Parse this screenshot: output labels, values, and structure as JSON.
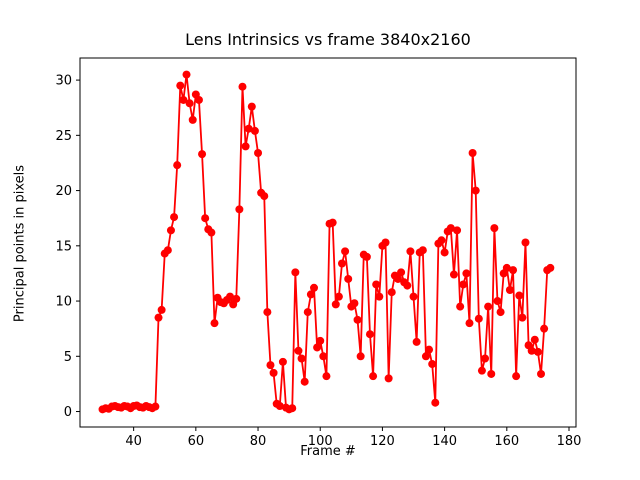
{
  "chart_data": {
    "type": "line",
    "title": "Lens Intrinsics vs frame 3840x2160",
    "xlabel": "Frame #",
    "ylabel": "Principal points in pixels",
    "line_color": "#ff0000",
    "marker": "circle",
    "legend": "none",
    "grid": false,
    "xlim": [
      22.75,
      182.25
    ],
    "ylim": [
      -1.4,
      32.0
    ],
    "xticks": [
      40,
      60,
      80,
      100,
      120,
      140,
      160,
      180
    ],
    "yticks": [
      0,
      5,
      10,
      15,
      20,
      25,
      30
    ],
    "x": [
      30,
      31,
      32,
      33,
      34,
      35,
      36,
      37,
      38,
      39,
      40,
      41,
      42,
      43,
      44,
      45,
      46,
      47,
      48,
      49,
      50,
      51,
      52,
      53,
      54,
      55,
      56,
      57,
      58,
      59,
      60,
      61,
      62,
      63,
      64,
      65,
      66,
      67,
      68,
      69,
      70,
      71,
      72,
      73,
      74,
      75,
      76,
      77,
      78,
      79,
      80,
      81,
      82,
      83,
      84,
      85,
      86,
      87,
      88,
      89,
      90,
      91,
      92,
      93,
      94,
      95,
      96,
      97,
      98,
      99,
      100,
      101,
      102,
      103,
      104,
      105,
      106,
      107,
      108,
      109,
      110,
      111,
      112,
      113,
      114,
      115,
      116,
      117,
      118,
      119,
      120,
      121,
      122,
      123,
      124,
      125,
      126,
      127,
      128,
      129,
      130,
      131,
      132,
      133,
      134,
      135,
      136,
      137,
      138,
      139,
      140,
      141,
      142,
      143,
      144,
      145,
      146,
      147,
      148,
      149,
      150,
      151,
      152,
      153,
      154,
      155,
      156,
      157,
      158,
      159,
      160,
      161,
      162,
      163,
      164,
      165,
      166,
      167,
      168,
      169,
      170,
      171,
      172,
      173,
      174
    ],
    "y": [
      0.2,
      0.3,
      0.25,
      0.45,
      0.5,
      0.4,
      0.35,
      0.5,
      0.45,
      0.3,
      0.5,
      0.55,
      0.4,
      0.35,
      0.5,
      0.4,
      0.3,
      0.45,
      8.5,
      9.2,
      14.3,
      14.6,
      16.4,
      17.6,
      22.3,
      29.5,
      28.2,
      30.5,
      27.9,
      26.4,
      28.7,
      28.2,
      23.3,
      17.5,
      16.5,
      16.2,
      8.0,
      10.3,
      9.9,
      9.8,
      10.1,
      10.4,
      9.7,
      10.2,
      18.3,
      29.4,
      24.0,
      25.6,
      27.6,
      25.4,
      23.4,
      19.8,
      19.5,
      9.0,
      4.2,
      3.5,
      0.7,
      0.5,
      4.5,
      0.35,
      0.2,
      0.3,
      12.6,
      5.5,
      4.8,
      2.7,
      9.0,
      10.6,
      11.2,
      5.8,
      6.4,
      5.0,
      3.2,
      17.0,
      17.1,
      9.7,
      10.4,
      13.4,
      14.5,
      12.0,
      9.5,
      9.8,
      8.3,
      5.0,
      14.2,
      14.0,
      7.0,
      3.2,
      11.5,
      10.4,
      15.0,
      15.3,
      3.0,
      10.8,
      12.3,
      12.0,
      12.6,
      11.7,
      11.4,
      14.5,
      10.4,
      6.3,
      14.4,
      14.6,
      5.0,
      5.6,
      4.3,
      0.8,
      15.2,
      15.5,
      14.4,
      16.3,
      16.6,
      12.4,
      16.4,
      9.5,
      11.5,
      12.5,
      8.0,
      23.4,
      20.0,
      8.4,
      3.7,
      4.8,
      9.5,
      3.4,
      16.6,
      10.0,
      9.0,
      12.5,
      13.0,
      11.0,
      12.8,
      3.2,
      10.5,
      8.5,
      15.3,
      6.0,
      5.5,
      6.5,
      5.4,
      3.4,
      7.5,
      12.8,
      13.0
    ]
  }
}
